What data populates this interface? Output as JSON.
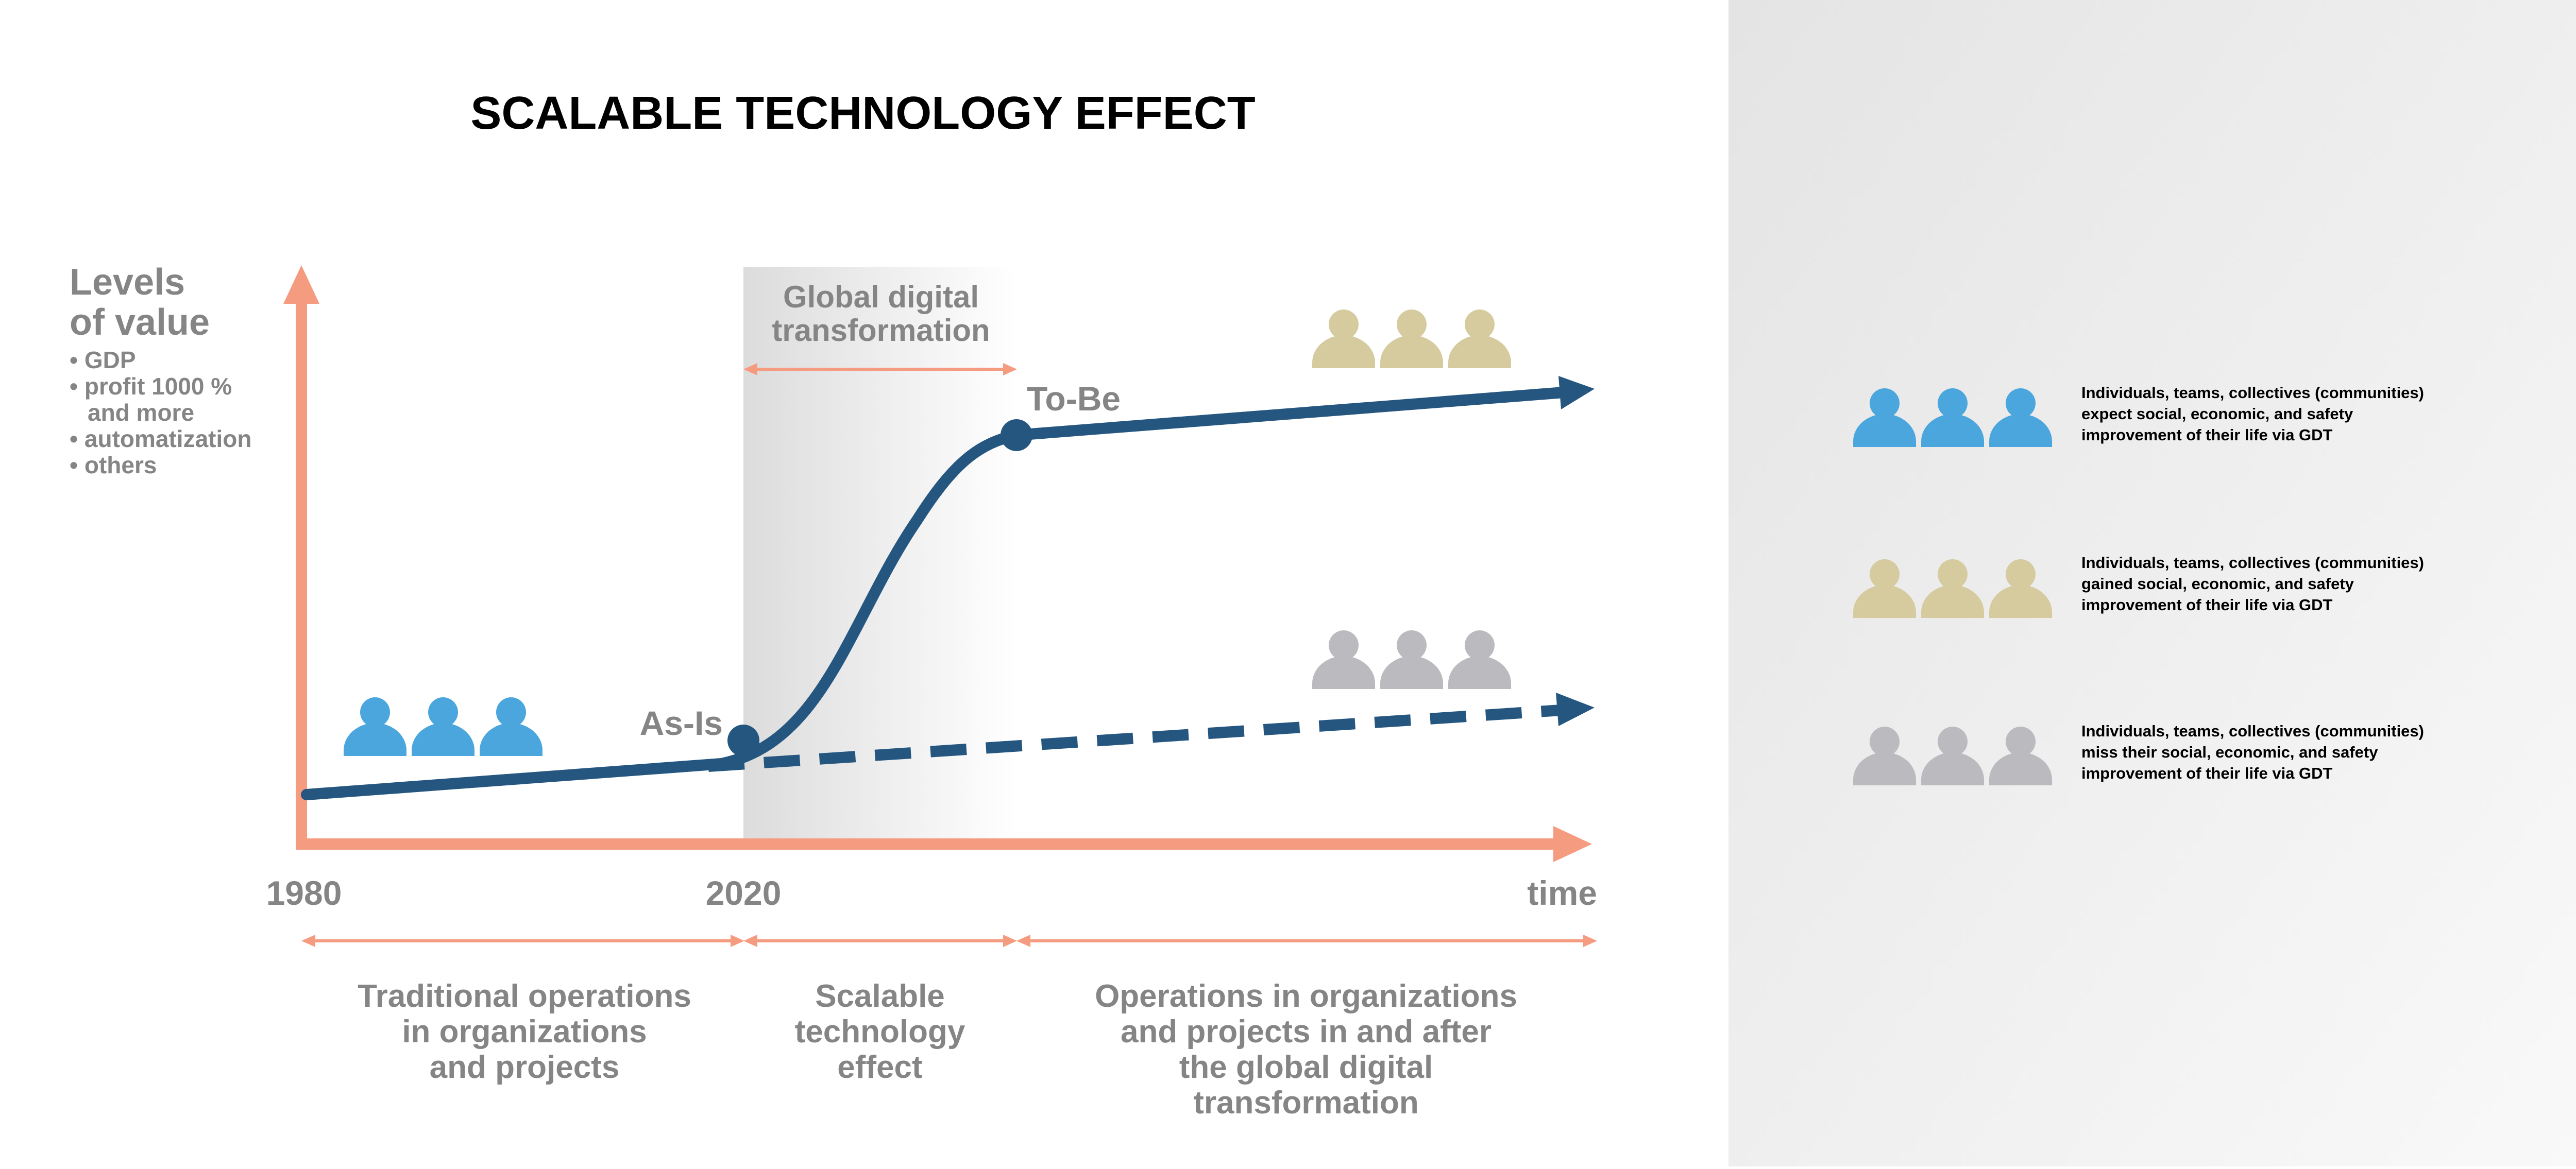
{
  "title": "SCALABLE TECHNOLOGY EFFECT",
  "y_axis": {
    "label_lines": [
      "Levels",
      "of value"
    ],
    "bullets": [
      "• GDP",
      "• profit 1000 %",
      "and more",
      "• automatization",
      "• others"
    ]
  },
  "x_axis": {
    "tick_start": "1980",
    "tick_mid": "2020",
    "label": "time"
  },
  "transformation_zone": {
    "label_lines": [
      "Global digital",
      "transformation"
    ]
  },
  "markers": {
    "as_is": "As-Is",
    "to_be": "To-Be"
  },
  "phases": [
    {
      "lines": [
        "Traditional operations",
        "in organizations",
        "and projects"
      ]
    },
    {
      "lines": [
        "Scalable",
        "technology",
        "effect"
      ]
    },
    {
      "lines": [
        "Operations in organizations",
        "and projects in and after",
        "the global digital",
        "transformation"
      ]
    }
  ],
  "legend": [
    {
      "color": "#4aa6dd",
      "lines": [
        "Individuals, teams, collectives (communities)",
        "expect social, economic, and safety",
        "improvement of their life via GDT"
      ]
    },
    {
      "color": "#d6cb9e",
      "lines": [
        "Individuals, teams, collectives (communities)",
        "gained social, economic, and safety",
        "improvement of their life via GDT"
      ]
    },
    {
      "color": "#bbbbbf",
      "lines": [
        "Individuals, teams, collectives (communities)",
        "miss their social, economic, and safety",
        "improvement of their life via GDT"
      ]
    }
  ],
  "colors": {
    "axis": "#f59c80",
    "curve": "#255680",
    "text_gray": "#858585",
    "people_blue": "#4aa6dd",
    "people_gold": "#d6cb9e",
    "people_gray": "#bbbbbf"
  },
  "icons": {
    "person": "person-icon",
    "arrow": "arrow-head-icon"
  }
}
